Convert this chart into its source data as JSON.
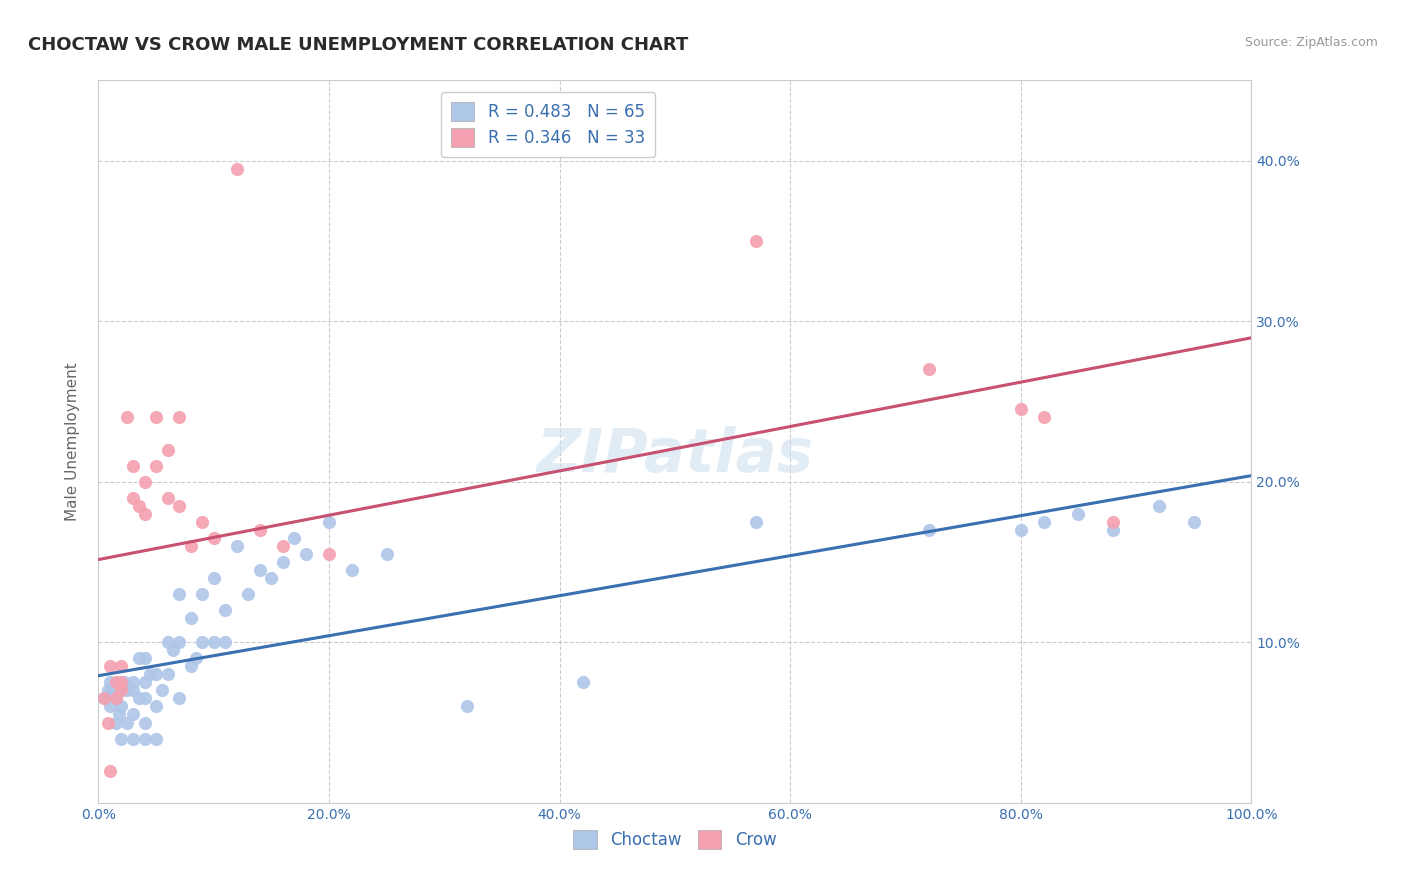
{
  "title": "CHOCTAW VS CROW MALE UNEMPLOYMENT CORRELATION CHART",
  "source": "Source: ZipAtlas.com",
  "ylabel": "Male Unemployment",
  "xlim": [
    0.0,
    1.0
  ],
  "ylim": [
    0.0,
    0.45
  ],
  "xticks": [
    0.0,
    0.2,
    0.4,
    0.6,
    0.8,
    1.0
  ],
  "yticks": [
    0.0,
    0.1,
    0.2,
    0.3,
    0.4
  ],
  "xtick_labels": [
    "0.0%",
    "20.0%",
    "40.0%",
    "60.0%",
    "80.0%",
    "100.0%"
  ],
  "ytick_labels_right": [
    "",
    "10.0%",
    "20.0%",
    "30.0%",
    "40.0%"
  ],
  "choctaw_R": 0.483,
  "choctaw_N": 65,
  "crow_R": 0.346,
  "crow_N": 33,
  "choctaw_color": "#aec6e8",
  "crow_color": "#f4a0b0",
  "choctaw_line_color": "#3a6fb0",
  "crow_line_color": "#c85070",
  "watermark": "ZIPatlas",
  "choctaw_x": [
    0.005,
    0.008,
    0.01,
    0.01,
    0.012,
    0.015,
    0.015,
    0.018,
    0.02,
    0.02,
    0.02,
    0.022,
    0.025,
    0.025,
    0.03,
    0.03,
    0.03,
    0.03,
    0.035,
    0.035,
    0.04,
    0.04,
    0.04,
    0.04,
    0.04,
    0.045,
    0.05,
    0.05,
    0.05,
    0.055,
    0.06,
    0.06,
    0.065,
    0.07,
    0.07,
    0.07,
    0.08,
    0.08,
    0.085,
    0.09,
    0.09,
    0.1,
    0.1,
    0.11,
    0.11,
    0.12,
    0.13,
    0.14,
    0.15,
    0.16,
    0.17,
    0.18,
    0.2,
    0.22,
    0.25,
    0.32,
    0.42,
    0.57,
    0.72,
    0.8,
    0.82,
    0.85,
    0.88,
    0.92,
    0.95
  ],
  "choctaw_y": [
    0.065,
    0.07,
    0.06,
    0.075,
    0.07,
    0.05,
    0.065,
    0.055,
    0.04,
    0.06,
    0.07,
    0.075,
    0.05,
    0.07,
    0.04,
    0.055,
    0.07,
    0.075,
    0.065,
    0.09,
    0.04,
    0.05,
    0.065,
    0.075,
    0.09,
    0.08,
    0.04,
    0.06,
    0.08,
    0.07,
    0.08,
    0.1,
    0.095,
    0.065,
    0.1,
    0.13,
    0.085,
    0.115,
    0.09,
    0.1,
    0.13,
    0.1,
    0.14,
    0.1,
    0.12,
    0.16,
    0.13,
    0.145,
    0.14,
    0.15,
    0.165,
    0.155,
    0.175,
    0.145,
    0.155,
    0.06,
    0.075,
    0.175,
    0.17,
    0.17,
    0.175,
    0.18,
    0.17,
    0.185,
    0.175
  ],
  "crow_x": [
    0.005,
    0.008,
    0.01,
    0.015,
    0.015,
    0.02,
    0.02,
    0.02,
    0.025,
    0.03,
    0.03,
    0.035,
    0.04,
    0.04,
    0.05,
    0.05,
    0.06,
    0.06,
    0.07,
    0.07,
    0.08,
    0.09,
    0.1,
    0.12,
    0.14,
    0.16,
    0.2,
    0.01,
    0.57,
    0.72,
    0.8,
    0.82,
    0.88
  ],
  "crow_y": [
    0.065,
    0.05,
    0.02,
    0.065,
    0.075,
    0.07,
    0.085,
    0.075,
    0.24,
    0.19,
    0.21,
    0.185,
    0.18,
    0.2,
    0.24,
    0.21,
    0.19,
    0.22,
    0.24,
    0.185,
    0.16,
    0.175,
    0.165,
    0.395,
    0.17,
    0.16,
    0.155,
    0.085,
    0.35,
    0.27,
    0.245,
    0.24,
    0.175
  ]
}
